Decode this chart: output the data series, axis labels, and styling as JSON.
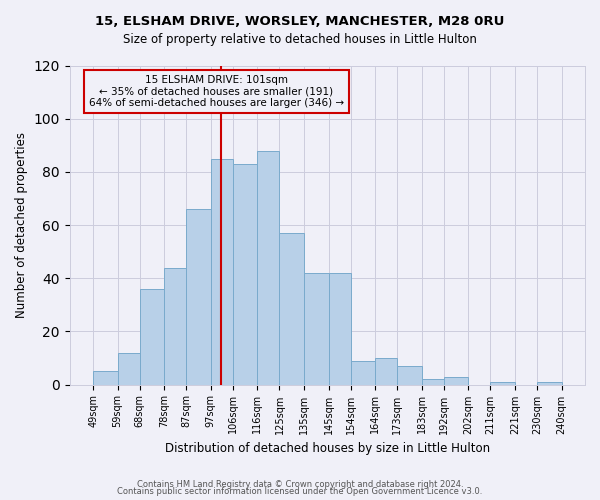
{
  "title1": "15, ELSHAM DRIVE, WORSLEY, MANCHESTER, M28 0RU",
  "title2": "Size of property relative to detached houses in Little Hulton",
  "xlabel": "Distribution of detached houses by size in Little Hulton",
  "ylabel": "Number of detached properties",
  "footer1": "Contains HM Land Registry data © Crown copyright and database right 2024.",
  "footer2": "Contains public sector information licensed under the Open Government Licence v3.0.",
  "annotation_line1": "15 ELSHAM DRIVE: 101sqm",
  "annotation_line2": "← 35% of detached houses are smaller (191)",
  "annotation_line3": "64% of semi-detached houses are larger (346) →",
  "bar_edges": [
    49,
    59,
    68,
    78,
    87,
    97,
    106,
    116,
    125,
    135,
    145,
    154,
    164,
    173,
    183,
    192,
    202,
    211,
    221,
    230,
    240
  ],
  "bar_heights": [
    5,
    12,
    36,
    44,
    66,
    85,
    83,
    88,
    57,
    42,
    42,
    9,
    10,
    7,
    2,
    3,
    0,
    1,
    0,
    1
  ],
  "bar_labels": [
    "49sqm",
    "59sqm",
    "68sqm",
    "78sqm",
    "87sqm",
    "97sqm",
    "106sqm",
    "116sqm",
    "125sqm",
    "135sqm",
    "145sqm",
    "154sqm",
    "164sqm",
    "173sqm",
    "183sqm",
    "192sqm",
    "202sqm",
    "211sqm",
    "221sqm",
    "230sqm",
    "240sqm"
  ],
  "bar_color": "#b8d0e8",
  "bar_edgecolor": "#7aaacc",
  "vline_x": 101,
  "vline_color": "#cc0000",
  "annotation_box_edgecolor": "#cc0000",
  "ylim": [
    0,
    120
  ],
  "yticks": [
    0,
    20,
    40,
    60,
    80,
    100,
    120
  ],
  "background_color": "#f0f0f8",
  "grid_color": "#ccccdd"
}
